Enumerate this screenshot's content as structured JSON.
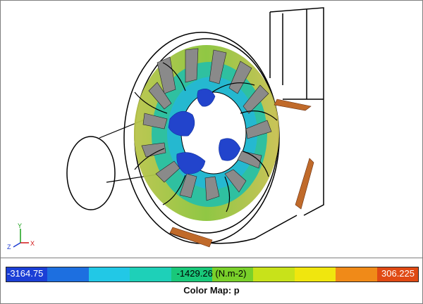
{
  "viewer": {
    "triad": {
      "x_label": "X",
      "y_label": "Y",
      "z_label": "Z"
    }
  },
  "legend": {
    "min_label": "-3164.75",
    "mid_label": "-1429.26 (N.m-2)",
    "max_label": "306.225",
    "colors": [
      "#1b3fd6",
      "#1d6fe0",
      "#22c8e6",
      "#1ed0b8",
      "#19c87a",
      "#7ad02a",
      "#c8e21a",
      "#f0e60e",
      "#f08a18",
      "#e04a14"
    ],
    "caption": "Color Map: p"
  }
}
